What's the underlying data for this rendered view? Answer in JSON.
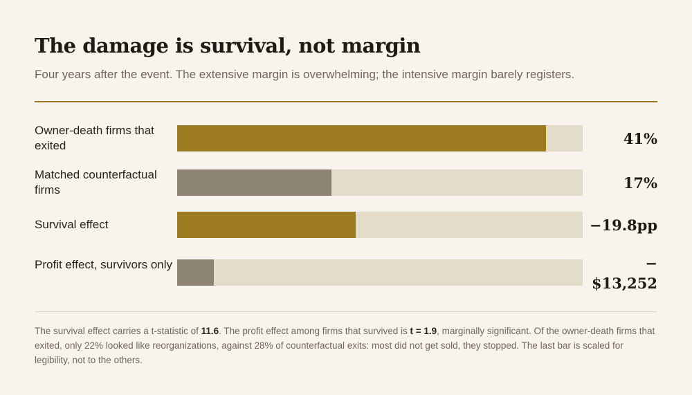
{
  "header": {
    "title": "The damage is survival, not margin",
    "subtitle": "Four years after the event. The extensive margin is overwhelming; the intensive margin barely registers."
  },
  "colors": {
    "background": "#f7f4ee",
    "accent": "#9c7b22",
    "muted": "#8c8372",
    "track": "#e3dccb"
  },
  "chart_data": {
    "type": "bar",
    "orientation": "horizontal",
    "categories": [
      "Owner-death firms that exited",
      "Matched counterfactual firms",
      "Survival effect",
      "Profit effect, survivors only"
    ],
    "values": [
      41,
      17,
      -19.8,
      -13252
    ],
    "value_labels": [
      "41%",
      "17%",
      "−19.8pp",
      "−$13,252"
    ],
    "bar_fraction": [
      0.91,
      0.38,
      0.44,
      0.09
    ],
    "bar_colors": [
      "#9c7b22",
      "#8c8372",
      "#9c7b22",
      "#8c8372"
    ],
    "title": "The damage is survival, not margin",
    "xlabel": "",
    "ylabel": "",
    "grid": false,
    "legend": "none"
  },
  "footnote": {
    "p1": "The survival effect carries a t-statistic of ",
    "b1": "11.6",
    "p2": ". The profit effect among firms that survived is ",
    "b2": "t = 1.9",
    "p3": ", marginally significant. Of the owner-death firms that exited, only 22% looked like reorganizations, against 28% of counterfactual exits: most did not get sold, they stopped. The last bar is scaled for legibility, not to the others."
  }
}
